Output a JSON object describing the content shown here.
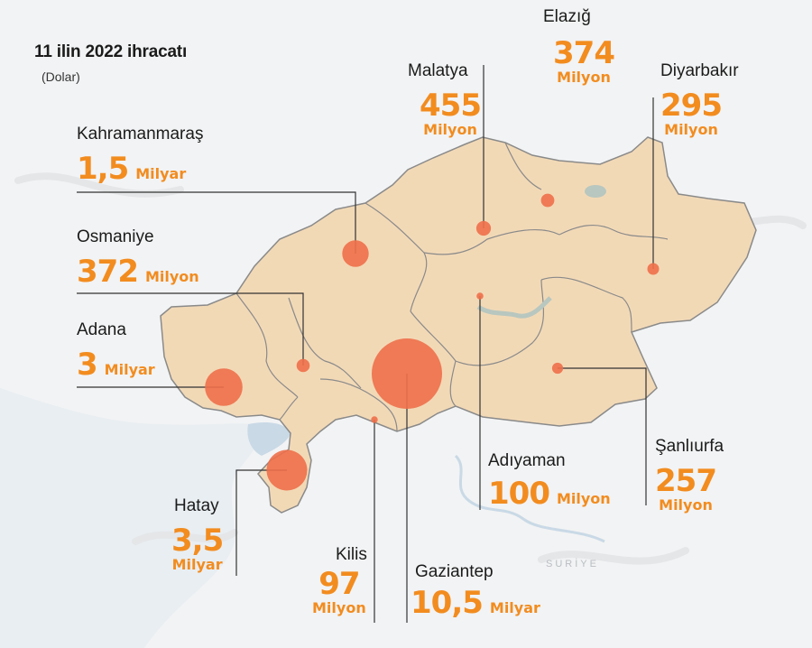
{
  "title": "11 ilin 2022 ihracatı",
  "subtitle": "(Dolar)",
  "country_label": "SURİYE",
  "colors": {
    "region_fill": "#f2d9b6",
    "border": "#8a8a8a",
    "bubble": "#ee6f4a",
    "accent": "#f28c1f",
    "water": "#c9d9e6",
    "background": "#f2f3f4"
  },
  "provinces": [
    {
      "name": "Elazığ",
      "value": "374",
      "unit": "Milyon",
      "usd_millions": 374
    },
    {
      "name": "Malatya",
      "value": "455",
      "unit": "Milyon",
      "usd_millions": 455
    },
    {
      "name": "Diyarbakır",
      "value": "295",
      "unit": "Milyon",
      "usd_millions": 295
    },
    {
      "name": "Kahramanmaraş",
      "value": "1,5",
      "unit": "Milyar",
      "usd_millions": 1500
    },
    {
      "name": "Osmaniye",
      "value": "372",
      "unit": "Milyon",
      "usd_millions": 372
    },
    {
      "name": "Adana",
      "value": "3",
      "unit": "Milyar",
      "usd_millions": 3000
    },
    {
      "name": "Hatay",
      "value": "3,5",
      "unit": "Milyar",
      "usd_millions": 3500
    },
    {
      "name": "Kilis",
      "value": "97",
      "unit": "Milyon",
      "usd_millions": 97
    },
    {
      "name": "Gaziantep",
      "value": "10,5",
      "unit": "Milyar",
      "usd_millions": 10500
    },
    {
      "name": "Adıyaman",
      "value": "100",
      "unit": "Milyon",
      "usd_millions": 100
    },
    {
      "name": "Şanlıurfa",
      "value": "257",
      "unit": "Milyon",
      "usd_millions": 257
    }
  ]
}
